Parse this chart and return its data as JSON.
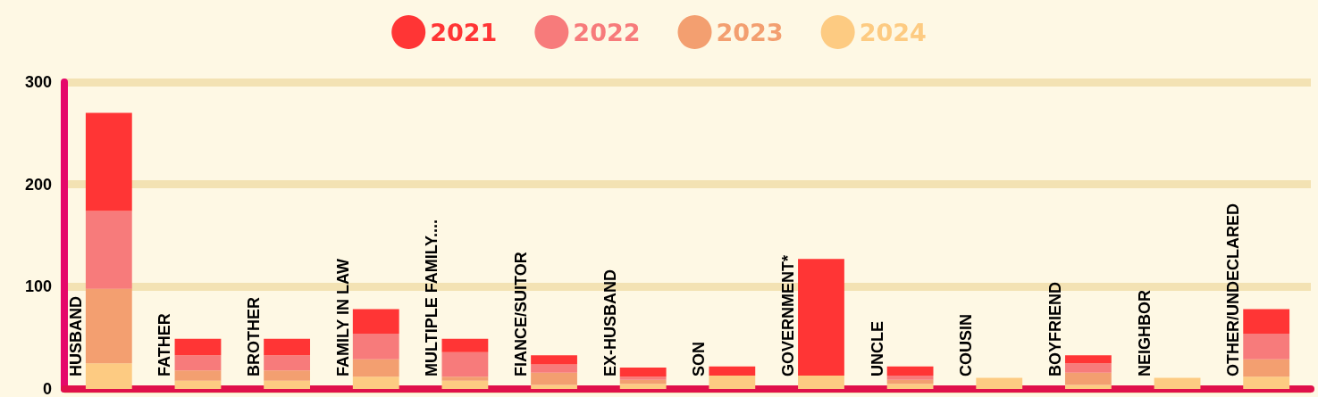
{
  "chart_data": {
    "type": "bar",
    "stacked": true,
    "categories": [
      "HUSBAND",
      "FATHER",
      "BROTHER",
      "FAMILY IN LAW",
      "MULTIPLE FAMILY....",
      "FIANCE/SUITOR",
      "EX-HUSBAND",
      "SON",
      "GOVERNMENT*",
      "UNCLE",
      "COUSIN",
      "BOYFRIEND",
      "NEIGHBOR",
      "OTHER/UNDECLARED"
    ],
    "series": [
      {
        "name": "2024",
        "color": "#fdcb82",
        "values": [
          25,
          8,
          8,
          12,
          8,
          4,
          5,
          13,
          13,
          5,
          11,
          4,
          11,
          12
        ]
      },
      {
        "name": "2023",
        "color": "#f39f70",
        "values": [
          73,
          10,
          10,
          17,
          4,
          12,
          4,
          0,
          0,
          4,
          0,
          12,
          0,
          17
        ]
      },
      {
        "name": "2022",
        "color": "#f77b7b",
        "values": [
          76,
          15,
          15,
          25,
          24,
          8,
          3,
          0,
          0,
          4,
          0,
          9,
          0,
          25
        ]
      },
      {
        "name": "2021",
        "color": "#ff3535",
        "values": [
          96,
          16,
          16,
          24,
          13,
          9,
          9,
          9,
          114,
          9,
          0,
          8,
          0,
          24
        ]
      }
    ],
    "ylim": [
      0,
      300
    ],
    "yticks": [
      0,
      100,
      200,
      300
    ],
    "grid": "y",
    "legend": "top"
  }
}
